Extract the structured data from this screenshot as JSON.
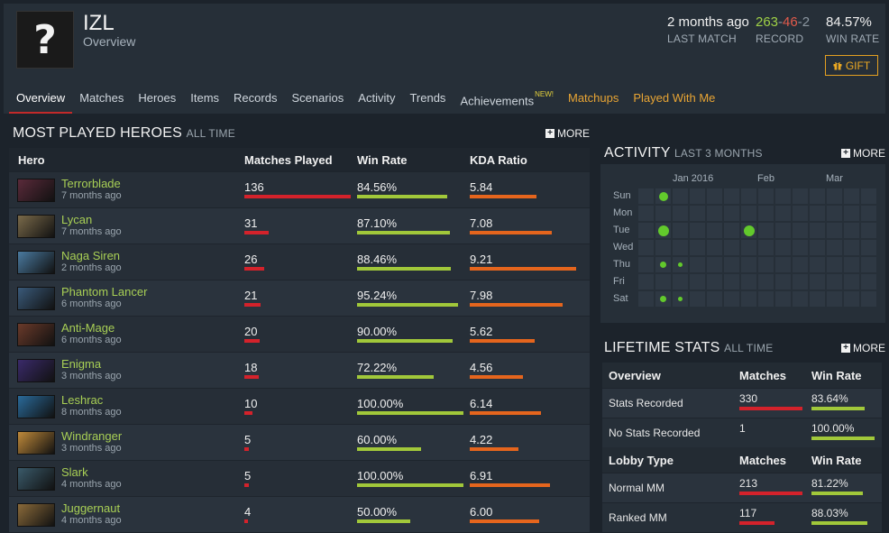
{
  "profile": {
    "avatar_glyph": "?",
    "name": "IZL",
    "subtitle": "Overview",
    "last_match": {
      "value": "2 months ago",
      "label": "LAST MATCH"
    },
    "record": {
      "wins": "263",
      "losses": "46",
      "abandons": "2",
      "sep": "-",
      "label": "RECORD"
    },
    "win_rate": {
      "value": "84.57%",
      "label": "WIN RATE"
    },
    "gift_label": "GIFT",
    "gift_icon": "gift-icon"
  },
  "nav": {
    "items": [
      {
        "label": "Overview",
        "active": true
      },
      {
        "label": "Matches"
      },
      {
        "label": "Heroes"
      },
      {
        "label": "Items"
      },
      {
        "label": "Records"
      },
      {
        "label": "Scenarios"
      },
      {
        "label": "Activity"
      },
      {
        "label": "Trends"
      },
      {
        "label": "Achievements",
        "badge": "NEW!"
      },
      {
        "label": "Matchups",
        "style": "orange"
      },
      {
        "label": "Played With Me",
        "style": "orange"
      }
    ]
  },
  "heroes": {
    "title": "MOST PLAYED HEROES",
    "title_small": "ALL TIME",
    "more_label": "MORE",
    "columns": [
      "Hero",
      "Matches Played",
      "Win Rate",
      "KDA Ratio"
    ],
    "rows": [
      {
        "name": "Terrorblade",
        "ago": "7 months ago",
        "matches": "136",
        "matches_frac": 1.0,
        "win_rate": "84.56%",
        "wr_frac": 0.8456,
        "kda": "5.84",
        "kda_frac": 0.63
      },
      {
        "name": "Lycan",
        "ago": "7 months ago",
        "matches": "31",
        "matches_frac": 0.23,
        "win_rate": "87.10%",
        "wr_frac": 0.871,
        "kda": "7.08",
        "kda_frac": 0.77
      },
      {
        "name": "Naga Siren",
        "ago": "2 months ago",
        "matches": "26",
        "matches_frac": 0.19,
        "win_rate": "88.46%",
        "wr_frac": 0.8846,
        "kda": "9.21",
        "kda_frac": 1.0
      },
      {
        "name": "Phantom Lancer",
        "ago": "6 months ago",
        "matches": "21",
        "matches_frac": 0.155,
        "win_rate": "95.24%",
        "wr_frac": 0.9524,
        "kda": "7.98",
        "kda_frac": 0.87
      },
      {
        "name": "Anti-Mage",
        "ago": "6 months ago",
        "matches": "20",
        "matches_frac": 0.148,
        "win_rate": "90.00%",
        "wr_frac": 0.9,
        "kda": "5.62",
        "kda_frac": 0.61
      },
      {
        "name": "Enigma",
        "ago": "3 months ago",
        "matches": "18",
        "matches_frac": 0.135,
        "win_rate": "72.22%",
        "wr_frac": 0.7222,
        "kda": "4.56",
        "kda_frac": 0.5
      },
      {
        "name": "Leshrac",
        "ago": "8 months ago",
        "matches": "10",
        "matches_frac": 0.075,
        "win_rate": "100.00%",
        "wr_frac": 1.0,
        "kda": "6.14",
        "kda_frac": 0.67
      },
      {
        "name": "Windranger",
        "ago": "3 months ago",
        "matches": "5",
        "matches_frac": 0.04,
        "win_rate": "60.00%",
        "wr_frac": 0.6,
        "kda": "4.22",
        "kda_frac": 0.46
      },
      {
        "name": "Slark",
        "ago": "4 months ago",
        "matches": "5",
        "matches_frac": 0.04,
        "win_rate": "100.00%",
        "wr_frac": 1.0,
        "kda": "6.91",
        "kda_frac": 0.75
      },
      {
        "name": "Juggernaut",
        "ago": "4 months ago",
        "matches": "4",
        "matches_frac": 0.032,
        "win_rate": "50.00%",
        "wr_frac": 0.5,
        "kda": "6.00",
        "kda_frac": 0.65
      }
    ],
    "hero_colors": [
      "#5a2a3a",
      "#7a6a4a",
      "#4a7aa0",
      "#3a5a7a",
      "#6a3a2a",
      "#3a2a6a",
      "#2a6a9a",
      "#c08a3a",
      "#3a5a6a",
      "#8a6a3a"
    ]
  },
  "activity": {
    "title": "ACTIVITY",
    "title_small": "LAST 3 MONTHS",
    "more_label": "MORE",
    "months": [
      "Jan 2016",
      "Feb",
      "Mar"
    ],
    "days": [
      "Sun",
      "Mon",
      "Tue",
      "Wed",
      "Thu",
      "Fri",
      "Sat"
    ],
    "dots": [
      {
        "week": 1,
        "day": 0,
        "size": "medium"
      },
      {
        "week": 1,
        "day": 2,
        "size": "large"
      },
      {
        "week": 6,
        "day": 2,
        "size": "large"
      },
      {
        "week": 1,
        "day": 4,
        "size": "small"
      },
      {
        "week": 2,
        "day": 4,
        "size": "tiny"
      },
      {
        "week": 1,
        "day": 6,
        "size": "small"
      },
      {
        "week": 2,
        "day": 6,
        "size": "tiny"
      }
    ],
    "dot_color": "#62c92c"
  },
  "lifetime": {
    "title": "LIFETIME STATS",
    "title_small": "ALL TIME",
    "more_label": "MORE",
    "sections": [
      {
        "header": [
          "Overview",
          "Matches",
          "Win Rate"
        ],
        "rows": [
          {
            "label": "Stats Recorded",
            "matches": "330",
            "m_frac": 1.0,
            "win_rate": "83.64%",
            "w_frac": 0.8364
          },
          {
            "label": "No Stats Recorded",
            "matches": "1",
            "m_frac": 0.0,
            "win_rate": "100.00%",
            "w_frac": 1.0
          }
        ]
      },
      {
        "header": [
          "Lobby Type",
          "Matches",
          "Win Rate"
        ],
        "rows": [
          {
            "label": "Normal MM",
            "matches": "213",
            "m_frac": 1.0,
            "win_rate": "81.22%",
            "w_frac": 0.8122
          },
          {
            "label": "Ranked MM",
            "matches": "117",
            "m_frac": 0.55,
            "win_rate": "88.03%",
            "w_frac": 0.8803
          }
        ]
      }
    ]
  },
  "colors": {
    "accent_green": "#a8cf55",
    "win": "#9fd146",
    "loss": "#e35a4b",
    "bar_red": "#d4222b",
    "bar_green": "#a1c83a",
    "bar_orange": "#e5651d",
    "gift": "#eeaa22"
  }
}
